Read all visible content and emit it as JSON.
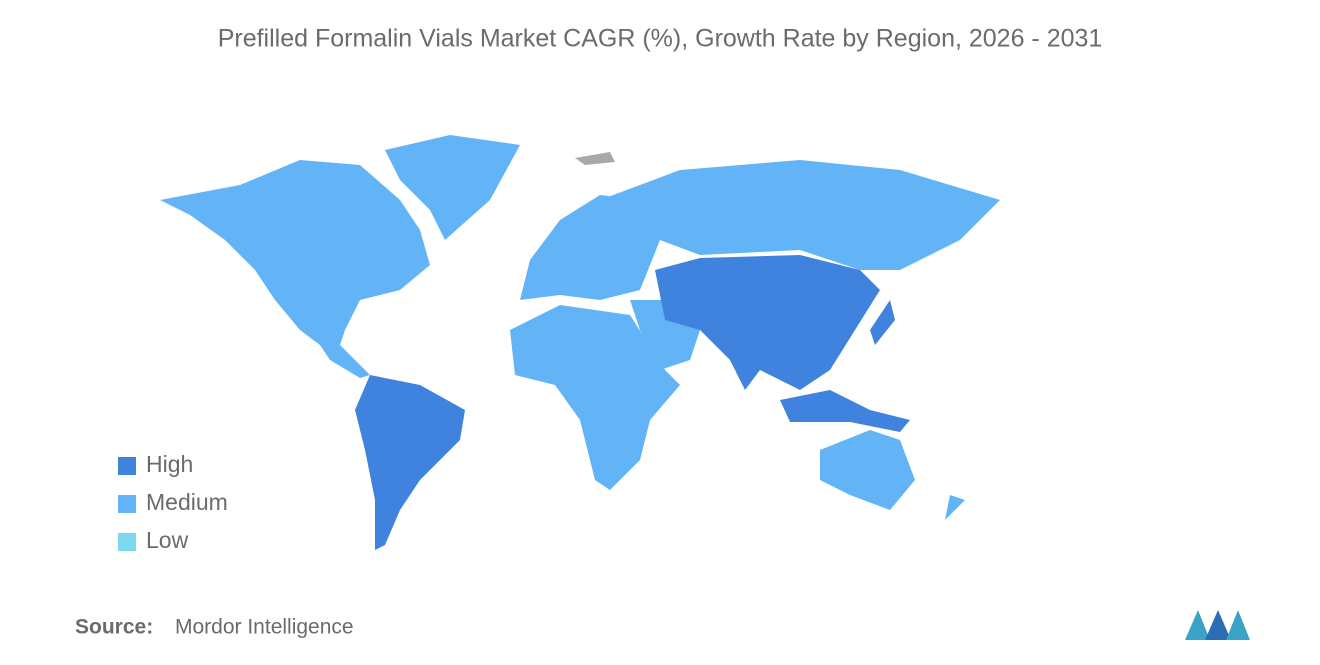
{
  "title": "Prefilled Formalin Vials Market CAGR (%), Growth Rate by Region, 2026 - 2031",
  "legend": [
    {
      "label": "High",
      "color": "#3f83de"
    },
    {
      "label": "Medium",
      "color": "#63b3f7"
    },
    {
      "label": "Low",
      "color": "#7dd9ef"
    }
  ],
  "source": {
    "label": "Source:",
    "text": "Mordor Intelligence"
  }
}
